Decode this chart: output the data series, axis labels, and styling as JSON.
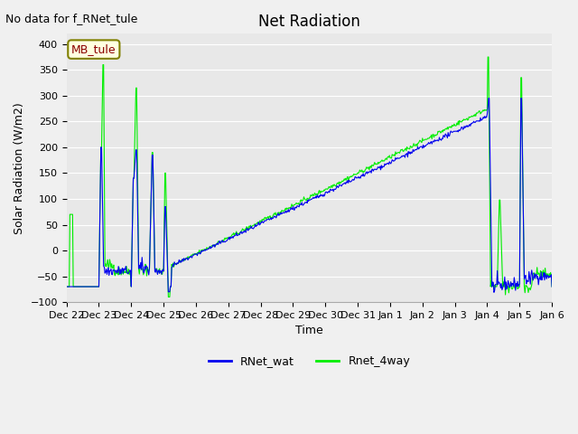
{
  "title": "Net Radiation",
  "xlabel": "Time",
  "ylabel": "Solar Radiation (W/m2)",
  "no_data_text": "No data for f_RNet_tule",
  "legend_label_box": "MB_tule",
  "ylim": [
    -100,
    420
  ],
  "xlim": [
    0,
    15
  ],
  "background_color": "#e8e8e8",
  "fig_background": "#f0f0f0",
  "line1_color": "#0000ee",
  "line2_color": "#00ee00",
  "line1_label": "RNet_wat",
  "line2_label": "Rnet_4way",
  "tick_labels": [
    "Dec 22",
    "Dec 23",
    "Dec 24",
    "Dec 25",
    "Dec 26",
    "Dec 27",
    "Dec 28",
    "Dec 29",
    "Dec 30",
    "Dec 31",
    "Jan 1",
    "Jan 2",
    "Jan 3",
    "Jan 4",
    "Jan 5",
    "Jan 6"
  ],
  "yticks": [
    -100,
    -50,
    0,
    50,
    100,
    150,
    200,
    250,
    300,
    350,
    400
  ],
  "title_fontsize": 12,
  "axis_fontsize": 9,
  "tick_fontsize": 8,
  "legend_fontsize": 9
}
